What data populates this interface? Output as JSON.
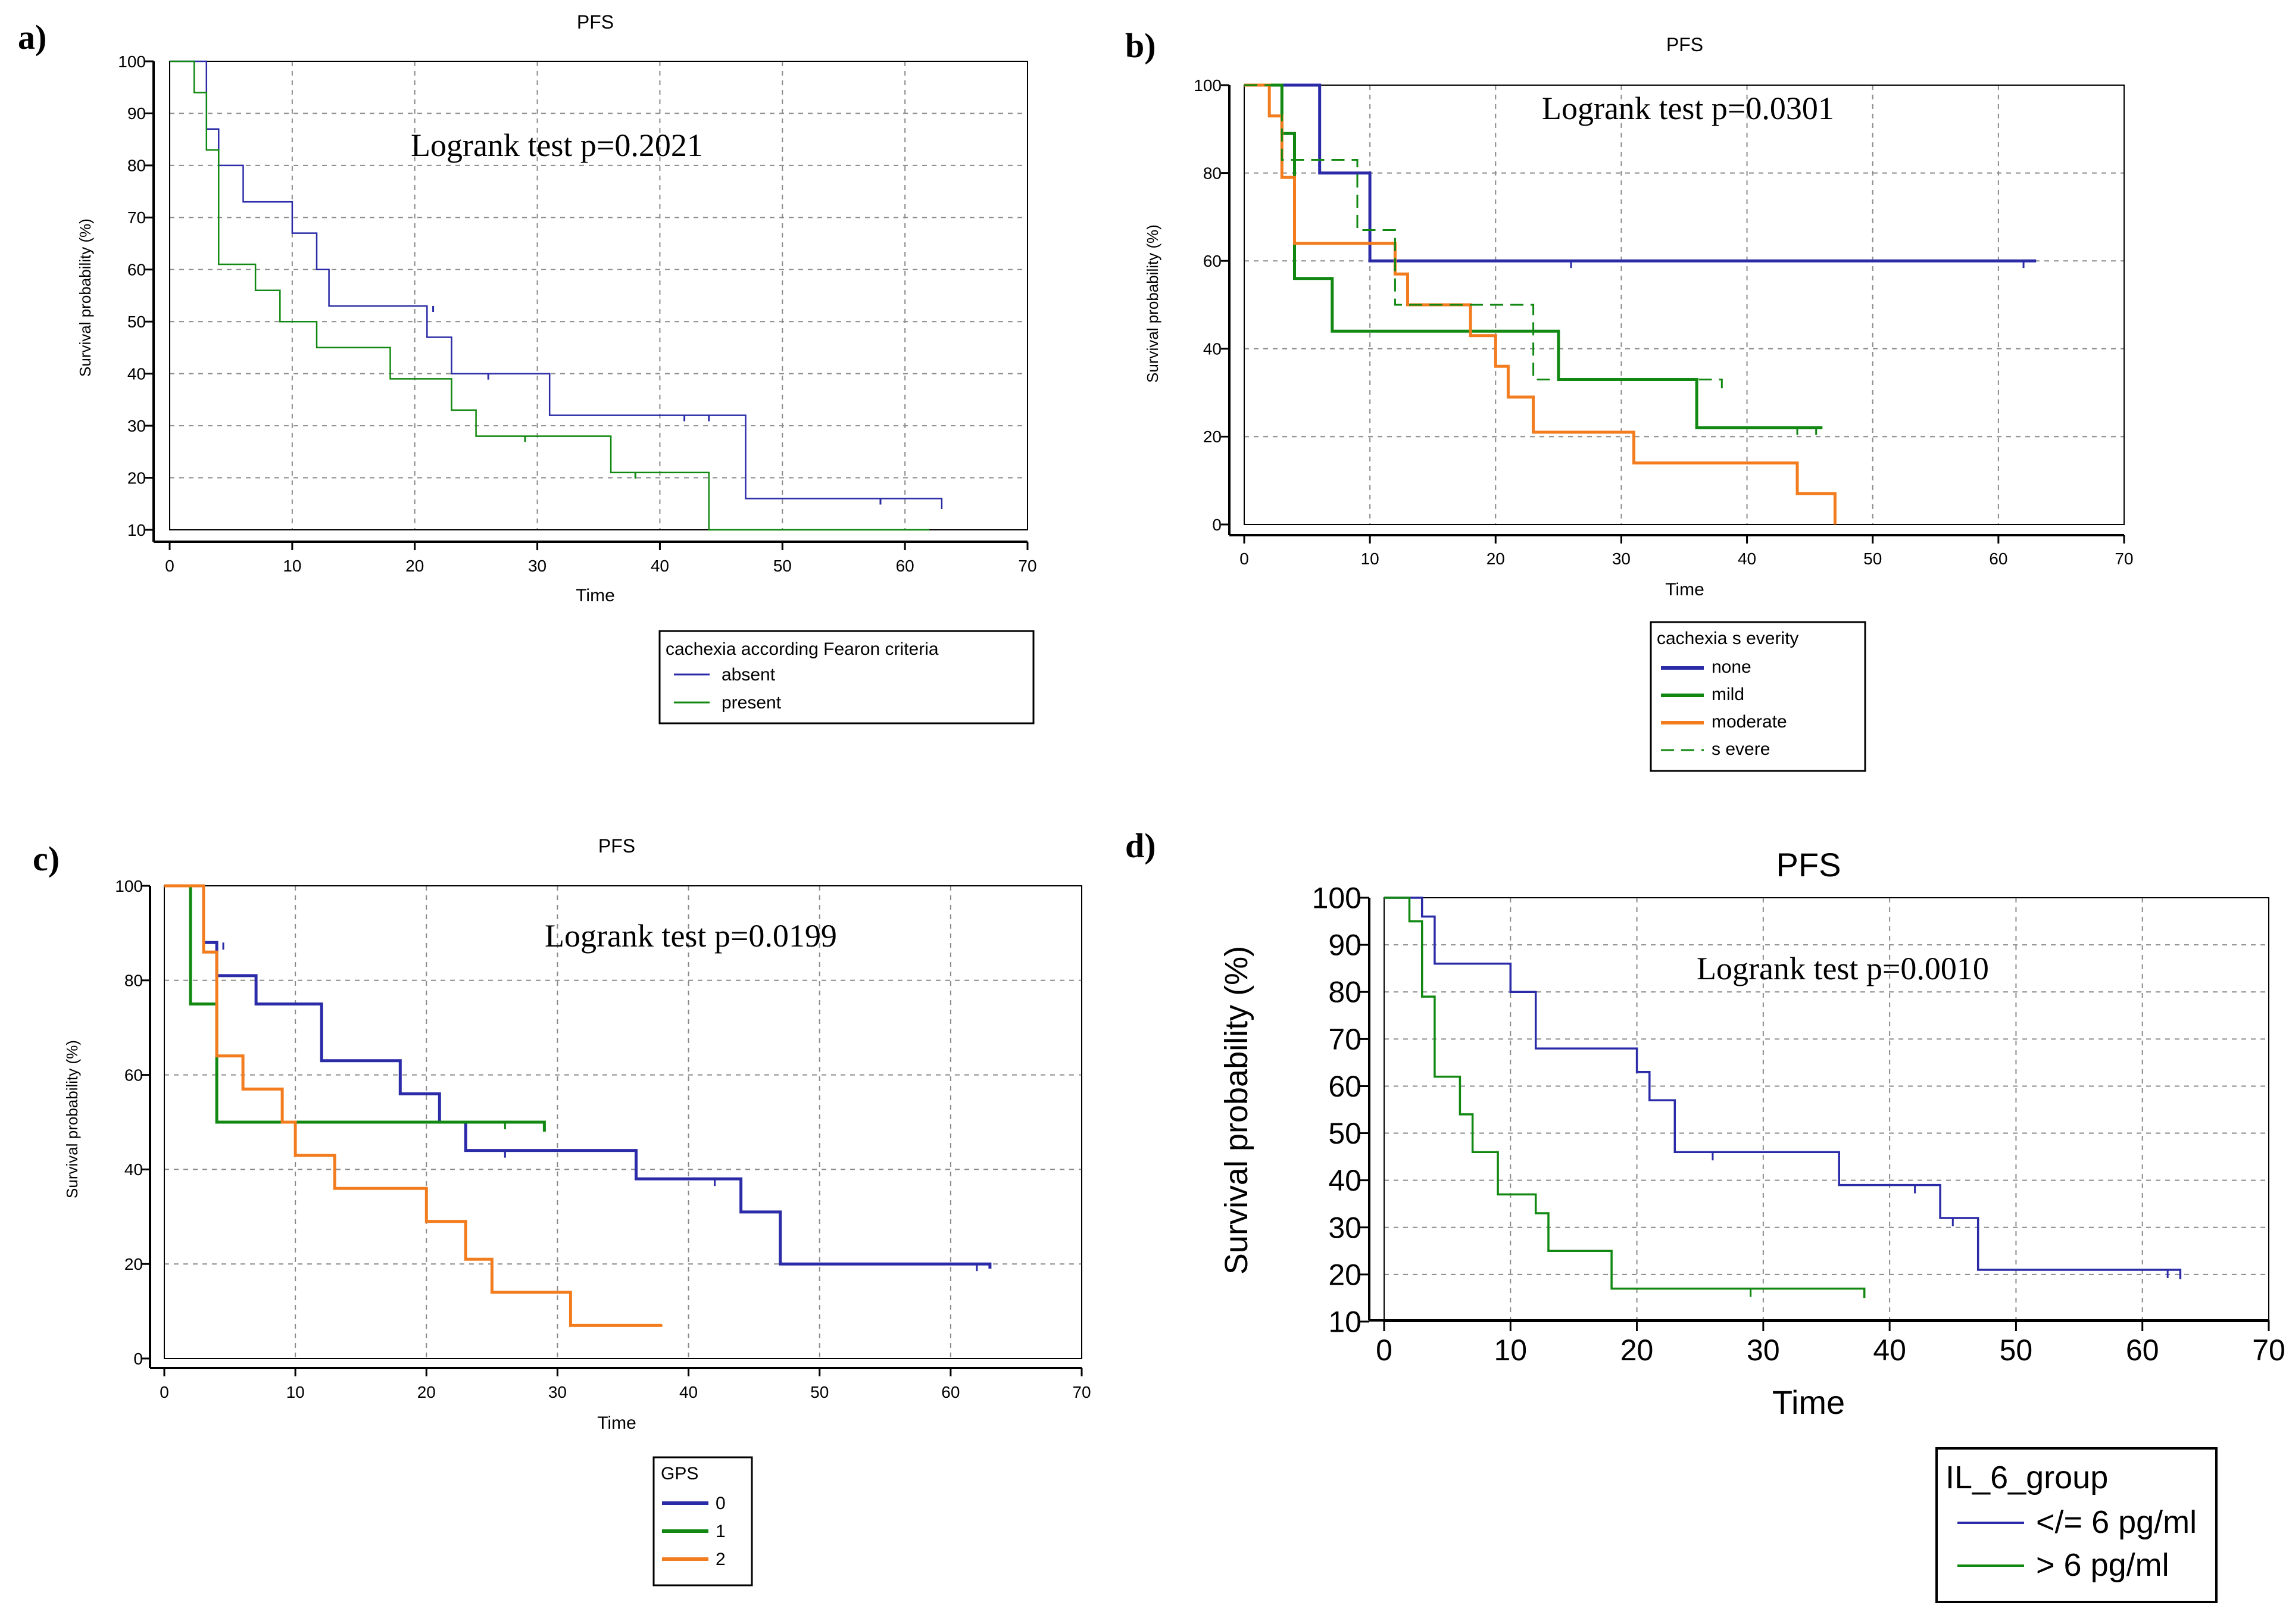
{
  "chart_data": [
    {
      "panel": "a)",
      "type": "line",
      "title": "PFS",
      "xlabel": "Time",
      "ylabel": "Survival probability (%)",
      "xlim": [
        0,
        70
      ],
      "ylim": [
        10,
        100
      ],
      "x_ticks": [
        "0",
        "10",
        "20",
        "30",
        "40",
        "50",
        "60",
        "70"
      ],
      "y_ticks": [
        "10",
        "20",
        "30",
        "40",
        "50",
        "60",
        "70",
        "80",
        "90",
        "100"
      ],
      "annotation": "Logrank test  p=0.2021",
      "legend": {
        "title": "cachexia according Fearon criteria",
        "placement": "below-right"
      },
      "series": [
        {
          "name": "absent",
          "color": "#2b2ba8",
          "dash": "solid",
          "steps": [
            [
              0,
              100
            ],
            [
              3,
              100
            ],
            [
              3,
              87
            ],
            [
              4,
              87
            ],
            [
              4,
              80
            ],
            [
              6,
              80
            ],
            [
              6,
              73
            ],
            [
              10,
              73
            ],
            [
              10,
              67
            ],
            [
              12,
              67
            ],
            [
              12,
              60
            ],
            [
              13,
              60
            ],
            [
              13,
              53
            ],
            [
              21,
              53
            ],
            [
              21,
              47
            ],
            [
              23,
              47
            ],
            [
              23,
              40
            ],
            [
              31,
              40
            ],
            [
              31,
              32
            ],
            [
              47,
              32
            ],
            [
              47,
              16
            ],
            [
              63,
              16
            ],
            [
              63,
              14
            ]
          ],
          "censored": [
            [
              21.5,
              53
            ],
            [
              26,
              40
            ],
            [
              42,
              32
            ],
            [
              44,
              32
            ],
            [
              58,
              16
            ]
          ]
        },
        {
          "name": "present",
          "color": "#118811",
          "dash": "solid",
          "steps": [
            [
              0,
              100
            ],
            [
              2,
              100
            ],
            [
              2,
              94
            ],
            [
              3,
              94
            ],
            [
              3,
              83
            ],
            [
              4,
              83
            ],
            [
              4,
              61
            ],
            [
              7,
              61
            ],
            [
              7,
              56
            ],
            [
              9,
              56
            ],
            [
              9,
              50
            ],
            [
              12,
              50
            ],
            [
              12,
              45
            ],
            [
              18,
              45
            ],
            [
              18,
              39
            ],
            [
              23,
              39
            ],
            [
              23,
              33
            ],
            [
              25,
              33
            ],
            [
              25,
              28
            ],
            [
              36,
              28
            ],
            [
              36,
              21
            ],
            [
              44,
              21
            ],
            [
              44,
              10
            ],
            [
              62,
              10
            ]
          ],
          "censored": [
            [
              29,
              28
            ],
            [
              38,
              21
            ]
          ]
        }
      ]
    },
    {
      "panel": "b)",
      "type": "line",
      "title": "PFS",
      "xlabel": "Time",
      "ylabel": "Survival probability (%)",
      "xlim": [
        0,
        70
      ],
      "ylim": [
        0,
        100
      ],
      "x_ticks": [
        "0",
        "10",
        "20",
        "30",
        "40",
        "50",
        "60",
        "70"
      ],
      "y_ticks": [
        "0",
        "20",
        "40",
        "60",
        "80",
        "100"
      ],
      "annotation": "Logrank test  p=0.0301",
      "legend": {
        "title": "cachexia s everity",
        "placement": "below"
      },
      "series": [
        {
          "name": "none",
          "color": "#2b2ba8",
          "dash": "solid",
          "steps": [
            [
              0,
              100
            ],
            [
              6,
              100
            ],
            [
              6,
              80
            ],
            [
              10,
              80
            ],
            [
              10,
              60
            ],
            [
              63,
              60
            ]
          ],
          "censored": [
            [
              26,
              60
            ],
            [
              62,
              60
            ]
          ]
        },
        {
          "name": "mild",
          "color": "#118811",
          "dash": "solid",
          "steps": [
            [
              0,
              100
            ],
            [
              3,
              100
            ],
            [
              3,
              89
            ],
            [
              4,
              89
            ],
            [
              4,
              56
            ],
            [
              7,
              56
            ],
            [
              7,
              44
            ],
            [
              25,
              44
            ],
            [
              25,
              33
            ],
            [
              36,
              33
            ],
            [
              36,
              22
            ],
            [
              46,
              22
            ]
          ],
          "censored": [
            [
              44,
              22
            ],
            [
              45.5,
              22
            ]
          ]
        },
        {
          "name": "moderate",
          "color": "#f27c1e",
          "dash": "solid",
          "steps": [
            [
              0,
              100
            ],
            [
              2,
              100
            ],
            [
              2,
              93
            ],
            [
              3,
              93
            ],
            [
              3,
              79
            ],
            [
              4,
              79
            ],
            [
              4,
              64
            ],
            [
              12,
              64
            ],
            [
              12,
              57
            ],
            [
              13,
              57
            ],
            [
              13,
              50
            ],
            [
              18,
              50
            ],
            [
              18,
              43
            ],
            [
              20,
              43
            ],
            [
              20,
              36
            ],
            [
              21,
              36
            ],
            [
              21,
              29
            ],
            [
              23,
              29
            ],
            [
              23,
              21
            ],
            [
              31,
              21
            ],
            [
              31,
              14
            ],
            [
              44,
              14
            ],
            [
              44,
              7
            ],
            [
              47,
              7
            ],
            [
              47,
              0
            ]
          ],
          "censored": []
        },
        {
          "name": "s evere",
          "color": "#118811",
          "dash": "dashed",
          "steps": [
            [
              0,
              100
            ],
            [
              3,
              100
            ],
            [
              3,
              83
            ],
            [
              9,
              83
            ],
            [
              9,
              67
            ],
            [
              12,
              67
            ],
            [
              12,
              50
            ],
            [
              23,
              50
            ],
            [
              23,
              33
            ],
            [
              38,
              33
            ],
            [
              38,
              31
            ]
          ],
          "censored": []
        }
      ]
    },
    {
      "panel": "c)",
      "type": "line",
      "title": "PFS",
      "xlabel": "Time",
      "ylabel": "Survival probability (%)",
      "xlim": [
        0,
        70
      ],
      "ylim": [
        0,
        100
      ],
      "x_ticks": [
        "0",
        "10",
        "20",
        "30",
        "40",
        "50",
        "60",
        "70"
      ],
      "y_ticks": [
        "0",
        "20",
        "40",
        "60",
        "80",
        "100"
      ],
      "annotation": "Logrank test  p=0.0199",
      "legend": {
        "title": "GPS",
        "placement": "below"
      },
      "series": [
        {
          "name": "0",
          "color": "#2b2ba8",
          "dash": "solid",
          "steps": [
            [
              0,
              100
            ],
            [
              3,
              100
            ],
            [
              3,
              88
            ],
            [
              4,
              88
            ],
            [
              4,
              81
            ],
            [
              7,
              81
            ],
            [
              7,
              75
            ],
            [
              12,
              75
            ],
            [
              12,
              63
            ],
            [
              18,
              63
            ],
            [
              18,
              56
            ],
            [
              21,
              56
            ],
            [
              21,
              50
            ],
            [
              23,
              50
            ],
            [
              23,
              44
            ],
            [
              36,
              44
            ],
            [
              36,
              38
            ],
            [
              44,
              38
            ],
            [
              44,
              31
            ],
            [
              47,
              31
            ],
            [
              47,
              20
            ],
            [
              63,
              20
            ],
            [
              63,
              19
            ]
          ],
          "censored": [
            [
              4.5,
              88
            ],
            [
              26,
              44
            ],
            [
              42,
              38
            ],
            [
              62,
              20
            ]
          ]
        },
        {
          "name": "1",
          "color": "#118811",
          "dash": "solid",
          "steps": [
            [
              0,
              100
            ],
            [
              2,
              100
            ],
            [
              2,
              75
            ],
            [
              4,
              75
            ],
            [
              4,
              50
            ],
            [
              29,
              50
            ],
            [
              29,
              48
            ]
          ],
          "censored": [
            [
              26,
              50
            ]
          ]
        },
        {
          "name": "2",
          "color": "#f27c1e",
          "dash": "solid",
          "steps": [
            [
              0,
              100
            ],
            [
              3,
              100
            ],
            [
              3,
              86
            ],
            [
              4,
              86
            ],
            [
              4,
              64
            ],
            [
              6,
              64
            ],
            [
              6,
              57
            ],
            [
              9,
              57
            ],
            [
              9,
              50
            ],
            [
              10,
              50
            ],
            [
              10,
              43
            ],
            [
              13,
              43
            ],
            [
              13,
              36
            ],
            [
              20,
              36
            ],
            [
              20,
              29
            ],
            [
              23,
              29
            ],
            [
              23,
              21
            ],
            [
              25,
              21
            ],
            [
              25,
              14
            ],
            [
              31,
              14
            ],
            [
              31,
              7
            ],
            [
              38,
              7
            ]
          ],
          "censored": []
        }
      ]
    },
    {
      "panel": "d)",
      "type": "line",
      "title": "PFS",
      "xlabel": "Time",
      "ylabel": "Survival probability (%)",
      "xlim": [
        0,
        70
      ],
      "ylim": [
        10,
        100
      ],
      "x_ticks": [
        "0",
        "10",
        "20",
        "30",
        "40",
        "50",
        "60",
        "70"
      ],
      "y_ticks": [
        "10",
        "20",
        "30",
        "40",
        "50",
        "60",
        "70",
        "80",
        "90",
        "100"
      ],
      "annotation": "Logrank test  p=0.0010",
      "legend": {
        "title": "IL_6_group",
        "placement": "below-right"
      },
      "series": [
        {
          "name": "</= 6 pg/ml",
          "color": "#2b2ba8",
          "dash": "solid",
          "steps": [
            [
              0,
              100
            ],
            [
              3,
              100
            ],
            [
              3,
              96
            ],
            [
              4,
              96
            ],
            [
              4,
              86
            ],
            [
              10,
              86
            ],
            [
              10,
              80
            ],
            [
              12,
              80
            ],
            [
              12,
              68
            ],
            [
              20,
              68
            ],
            [
              20,
              63
            ],
            [
              21,
              63
            ],
            [
              21,
              57
            ],
            [
              23,
              57
            ],
            [
              23,
              46
            ],
            [
              36,
              46
            ],
            [
              36,
              39
            ],
            [
              44,
              39
            ],
            [
              44,
              32
            ],
            [
              47,
              32
            ],
            [
              47,
              21
            ],
            [
              63,
              21
            ],
            [
              63,
              19
            ]
          ],
          "censored": [
            [
              26,
              46
            ],
            [
              42,
              39
            ],
            [
              45,
              32
            ],
            [
              62,
              21
            ]
          ]
        },
        {
          "name": "> 6 pg/ml",
          "color": "#118811",
          "dash": "solid",
          "steps": [
            [
              0,
              100
            ],
            [
              2,
              100
            ],
            [
              2,
              95
            ],
            [
              3,
              95
            ],
            [
              3,
              79
            ],
            [
              4,
              79
            ],
            [
              4,
              62
            ],
            [
              6,
              62
            ],
            [
              6,
              54
            ],
            [
              7,
              54
            ],
            [
              7,
              46
            ],
            [
              9,
              46
            ],
            [
              9,
              37
            ],
            [
              12,
              37
            ],
            [
              12,
              33
            ],
            [
              13,
              33
            ],
            [
              13,
              25
            ],
            [
              18,
              25
            ],
            [
              18,
              17
            ],
            [
              38,
              17
            ],
            [
              38,
              15
            ]
          ],
          "censored": [
            [
              29,
              17
            ]
          ]
        }
      ]
    }
  ]
}
